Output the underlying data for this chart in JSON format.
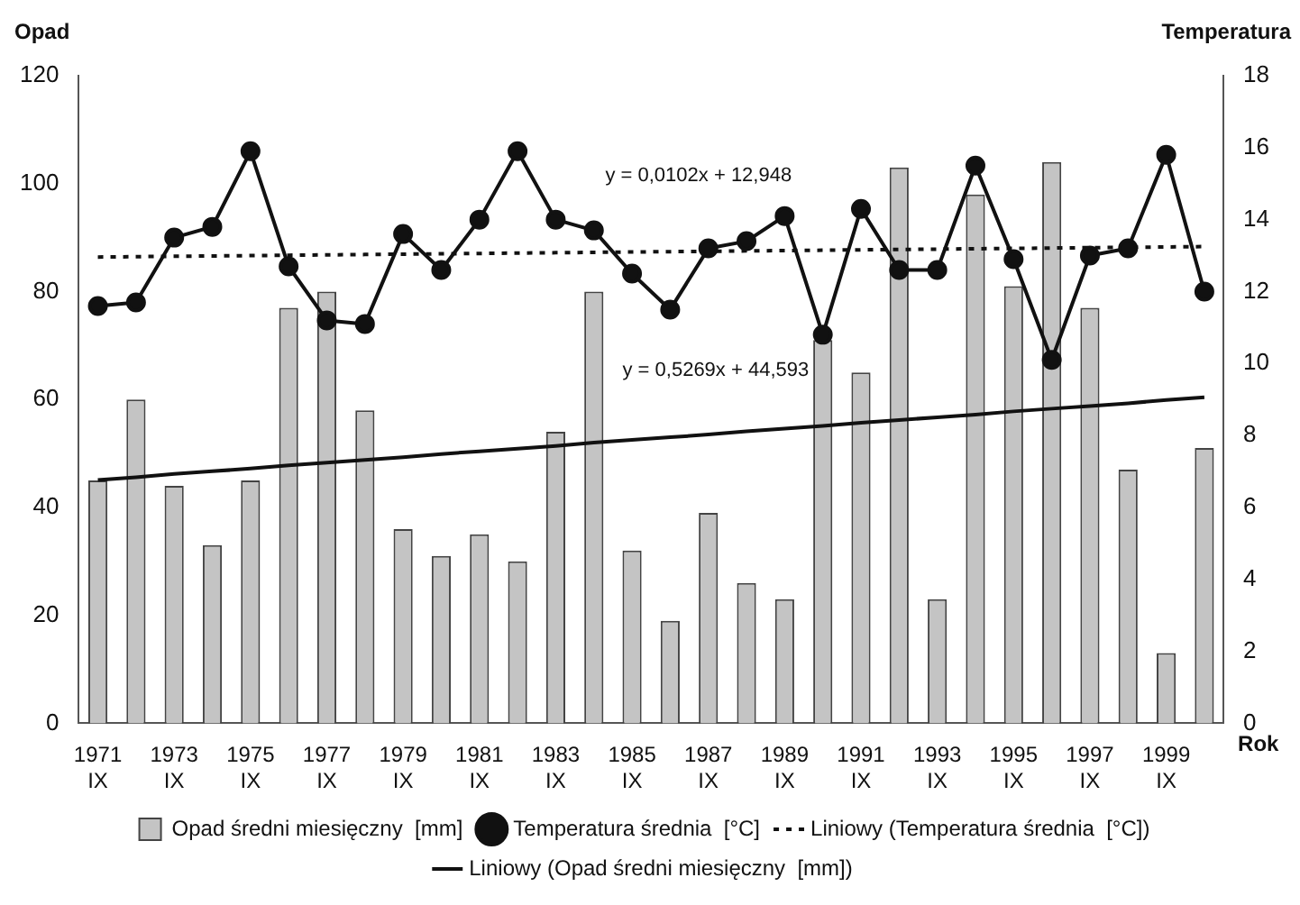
{
  "chart_data": {
    "type": "bar",
    "xlabel": "Rok",
    "ylabel": "Opad",
    "y2label": "Temperatura",
    "categories": [
      "1971\nIX",
      null,
      "1973\nIX",
      null,
      "1975\nIX",
      null,
      "1977\nIX",
      null,
      "1979\nIX",
      null,
      "1981\nIX",
      null,
      "1983\nIX",
      null,
      "1985\nIX",
      null,
      "1987\nIX",
      null,
      "1989\nIX",
      null,
      "1991\nIX",
      null,
      "1993\nIX",
      null,
      "1995\nIX",
      null,
      "1997\nIX",
      null,
      "1999\nIX",
      null
    ],
    "series": [
      {
        "name": "Opad średni miesięczny  [mm]",
        "color": "#c4c4c4",
        "values": [
          45,
          60,
          44,
          33,
          45,
          77,
          80,
          58,
          36,
          31,
          35,
          30,
          54,
          80,
          32,
          19,
          39,
          26,
          23,
          71,
          65,
          103,
          23,
          98,
          81,
          104,
          77,
          47,
          13,
          51
        ]
      },
      {
        "name": "Temperatura średnia  [°C]",
        "type": "line",
        "axis": "y2",
        "color": "#111111",
        "marker": "circle",
        "line_style": "solid",
        "values": [
          11.6,
          11.7,
          13.5,
          13.8,
          15.9,
          12.7,
          11.2,
          11.1,
          13.6,
          12.6,
          14.0,
          15.9,
          14.0,
          13.7,
          12.5,
          11.5,
          13.2,
          13.4,
          14.1,
          10.8,
          14.3,
          12.6,
          12.6,
          15.5,
          12.9,
          10.1,
          13.0,
          13.2,
          15.8,
          12.0
        ]
      },
      {
        "name": "Liniowy (Temperatura średnia  [°C])",
        "type": "line",
        "axis": "y2",
        "color": "#111111",
        "marker": "none",
        "line_style": "dotted",
        "values": [
          12.96,
          12.97,
          12.98,
          12.99,
          13.0,
          13.01,
          13.02,
          13.03,
          13.04,
          13.05,
          13.06,
          13.07,
          13.08,
          13.09,
          13.1,
          13.11,
          13.12,
          13.13,
          13.14,
          13.15,
          13.16,
          13.17,
          13.18,
          13.19,
          13.2,
          13.21,
          13.22,
          13.23,
          13.24,
          13.25
        ]
      },
      {
        "name": "Liniowy (Opad średni miesięczny  [mm])",
        "type": "line",
        "color": "#111111",
        "marker": "none",
        "line_style": "solid",
        "values": [
          45.1,
          45.6,
          46.2,
          46.7,
          47.2,
          47.8,
          48.3,
          48.8,
          49.3,
          49.9,
          50.4,
          50.9,
          51.4,
          52.0,
          52.5,
          53.0,
          53.5,
          54.1,
          54.6,
          55.1,
          55.7,
          56.2,
          56.7,
          57.2,
          57.8,
          58.3,
          58.8,
          59.3,
          59.9,
          60.4
        ]
      }
    ],
    "ylim": [
      0,
      120
    ],
    "yticks": [
      0,
      20,
      40,
      60,
      80,
      100,
      120
    ],
    "y2lim": [
      0,
      18
    ],
    "y2ticks": [
      0,
      2,
      4,
      6,
      8,
      10,
      12,
      14,
      16,
      18
    ],
    "annotations": [
      "y = 0,0102x + 12,948",
      "y = 0,5269x + 44,593"
    ],
    "grid": false,
    "legend": "bottom"
  }
}
